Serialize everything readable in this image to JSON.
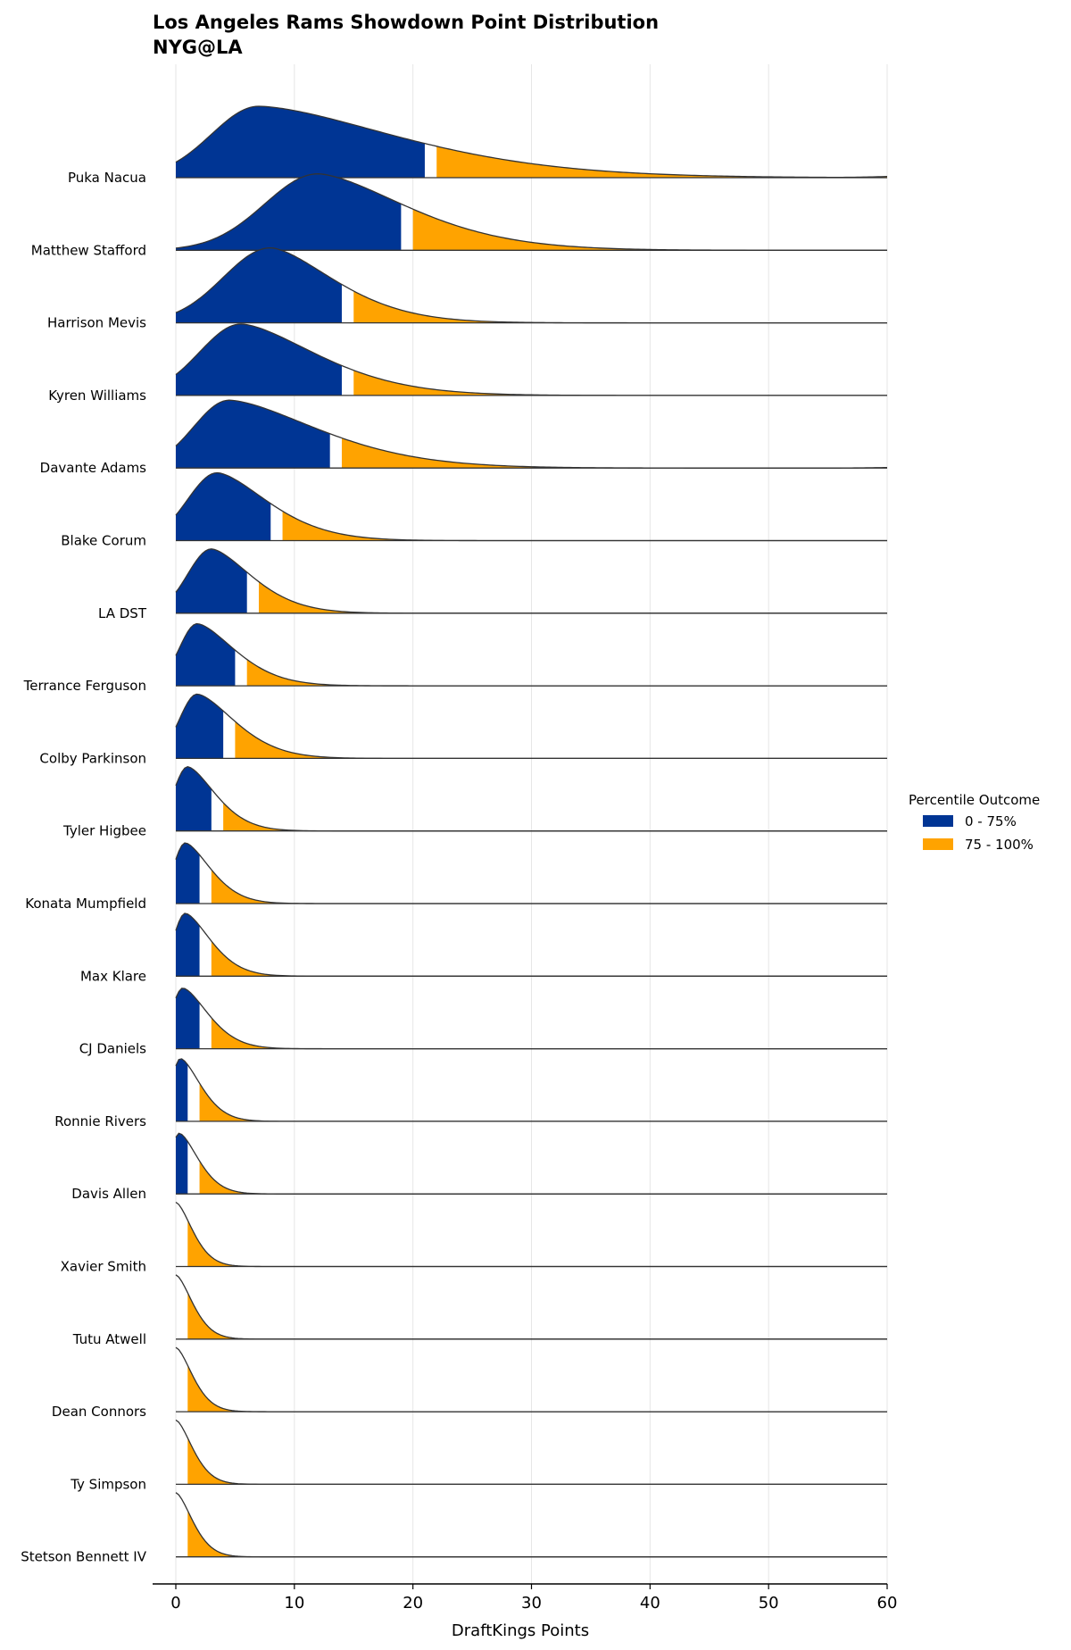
{
  "chart_data": {
    "type": "ridgeline",
    "title": "Los Angeles Rams Showdown Point Distribution",
    "subtitle": "NYG@LA",
    "xlabel": "DraftKings Points",
    "xlim": [
      0,
      60
    ],
    "xticks": [
      0,
      10,
      20,
      30,
      40,
      50,
      60
    ],
    "grid": "vertical",
    "legend": {
      "title": "Percentile Outcome",
      "position": "right",
      "entries": [
        {
          "label": "0 - 75%",
          "color": "#003594"
        },
        {
          "label": "75 - 100%",
          "color": "#FFA300"
        }
      ]
    },
    "series": [
      {
        "name": "Puka Nacua",
        "peak_x": 7,
        "peak_density": 1.0,
        "left_spread": 4.0,
        "right_spread": 11,
        "p75": 21,
        "right_end": 0.1,
        "lead_zero": false
      },
      {
        "name": "Matthew Stafford",
        "peak_x": 12,
        "peak_density": 1.07,
        "left_spread": 4.5,
        "right_spread": 7,
        "p75": 19,
        "right_end": 0.0,
        "lead_zero": false
      },
      {
        "name": "Harrison Mevis",
        "peak_x": 8,
        "peak_density": 1.05,
        "left_spread": 4.0,
        "right_spread": 5,
        "p75": 14,
        "right_end": 0.0,
        "lead_zero": false
      },
      {
        "name": "Kyren Williams",
        "peak_x": 5.5,
        "peak_density": 1.0,
        "left_spread": 3.5,
        "right_spread": 6,
        "p75": 14,
        "right_end": 0.0,
        "lead_zero": false
      },
      {
        "name": "Davante Adams",
        "peak_x": 4.5,
        "peak_density": 0.95,
        "left_spread": 3.0,
        "right_spread": 7,
        "p75": 13,
        "right_end": 0.05,
        "lead_zero": false
      },
      {
        "name": "Blake Corum",
        "peak_x": 3.5,
        "peak_density": 0.95,
        "left_spread": 2.5,
        "right_spread": 4,
        "p75": 8,
        "right_end": 0.0,
        "lead_zero": false
      },
      {
        "name": "LA DST",
        "peak_x": 3,
        "peak_density": 0.9,
        "left_spread": 2.0,
        "right_spread": 3.2,
        "p75": 6,
        "right_end": 0.0,
        "lead_zero": false
      },
      {
        "name": "Terrance Ferguson",
        "peak_x": 1.8,
        "peak_density": 0.87,
        "left_spread": 1.5,
        "right_spread": 3,
        "p75": 5,
        "right_end": 0.0,
        "lead_zero": false
      },
      {
        "name": "Colby Parkinson",
        "peak_x": 1.8,
        "peak_density": 0.9,
        "left_spread": 1.5,
        "right_spread": 3,
        "p75": 4,
        "right_end": 0.0,
        "lead_zero": false
      },
      {
        "name": "Tyler Higbee",
        "peak_x": 1.0,
        "peak_density": 0.9,
        "left_spread": 1.2,
        "right_spread": 2.2,
        "p75": 3,
        "right_end": 0.0,
        "lead_zero": false
      },
      {
        "name": "Konata Mumpfield",
        "peak_x": 0.8,
        "peak_density": 0.85,
        "left_spread": 1.0,
        "right_spread": 2,
        "p75": 2,
        "right_end": 0.0,
        "lead_zero": false
      },
      {
        "name": "Max Klare",
        "peak_x": 0.8,
        "peak_density": 0.88,
        "left_spread": 1.0,
        "right_spread": 2,
        "p75": 2,
        "right_end": 0.0,
        "lead_zero": false
      },
      {
        "name": "CJ Daniels",
        "peak_x": 0.6,
        "peak_density": 0.85,
        "left_spread": 1.0,
        "right_spread": 2,
        "p75": 2,
        "right_end": 0.0,
        "lead_zero": false
      },
      {
        "name": "Ronnie Rivers",
        "peak_x": 0.4,
        "peak_density": 0.88,
        "left_spread": 0.8,
        "right_spread": 1.6,
        "p75": 1,
        "right_end": 0.0,
        "lead_zero": false
      },
      {
        "name": "Davis Allen",
        "peak_x": 0.3,
        "peak_density": 0.85,
        "left_spread": 0.8,
        "right_spread": 1.5,
        "p75": 1,
        "right_end": 0.0,
        "lead_zero": false
      },
      {
        "name": "Xavier Smith",
        "peak_x": 0,
        "peak_density": 0.9,
        "left_spread": 0.5,
        "right_spread": 1.3,
        "p75": 0,
        "right_end": 0.0,
        "lead_zero": true
      },
      {
        "name": "Tutu Atwell",
        "peak_x": 0,
        "peak_density": 0.9,
        "left_spread": 0.5,
        "right_spread": 1.3,
        "p75": 0,
        "right_end": 0.0,
        "lead_zero": true
      },
      {
        "name": "Dean Connors",
        "peak_x": 0,
        "peak_density": 0.9,
        "left_spread": 0.5,
        "right_spread": 1.3,
        "p75": 0,
        "right_end": 0.0,
        "lead_zero": true
      },
      {
        "name": "Ty Simpson",
        "peak_x": 0,
        "peak_density": 0.9,
        "left_spread": 0.5,
        "right_spread": 1.3,
        "p75": 0,
        "right_end": 0.0,
        "lead_zero": true
      },
      {
        "name": "Stetson Bennett IV",
        "peak_x": 0,
        "peak_density": 0.9,
        "left_spread": 0.5,
        "right_spread": 1.3,
        "p75": 0,
        "right_end": 0.0,
        "lead_zero": true
      }
    ]
  }
}
